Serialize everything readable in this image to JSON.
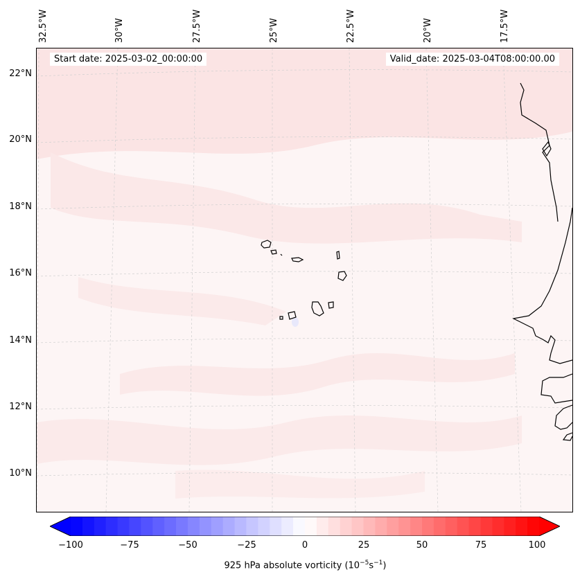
{
  "map": {
    "start_label": "Start date: 2025-03-02_00:00:00",
    "valid_label": "Valid_date: 2025-03-04T08:00:00.00",
    "lon_labels": [
      "32.5°W",
      "30°W",
      "27.5°W",
      "25°W",
      "22.5°W",
      "20°W",
      "17.5°W"
    ],
    "lat_labels": [
      "22°N",
      "20°N",
      "18°N",
      "16°N",
      "14°N",
      "12°N",
      "10°N"
    ],
    "features": [
      "cape-verde-islands",
      "west-africa-coastline"
    ],
    "field_color": "#fdf5f5"
  },
  "colorbar": {
    "ticks": [
      "−100",
      "−75",
      "−50",
      "−25",
      "0",
      "25",
      "50",
      "75",
      "100"
    ],
    "range": [
      -100,
      100
    ],
    "levels": 41,
    "cmap": "bwr",
    "title_prefix": "925 hPa absolute vorticity (10",
    "title_exp1": "−5",
    "title_mid": "s",
    "title_exp2": "−1",
    "title_suffix": ")"
  }
}
